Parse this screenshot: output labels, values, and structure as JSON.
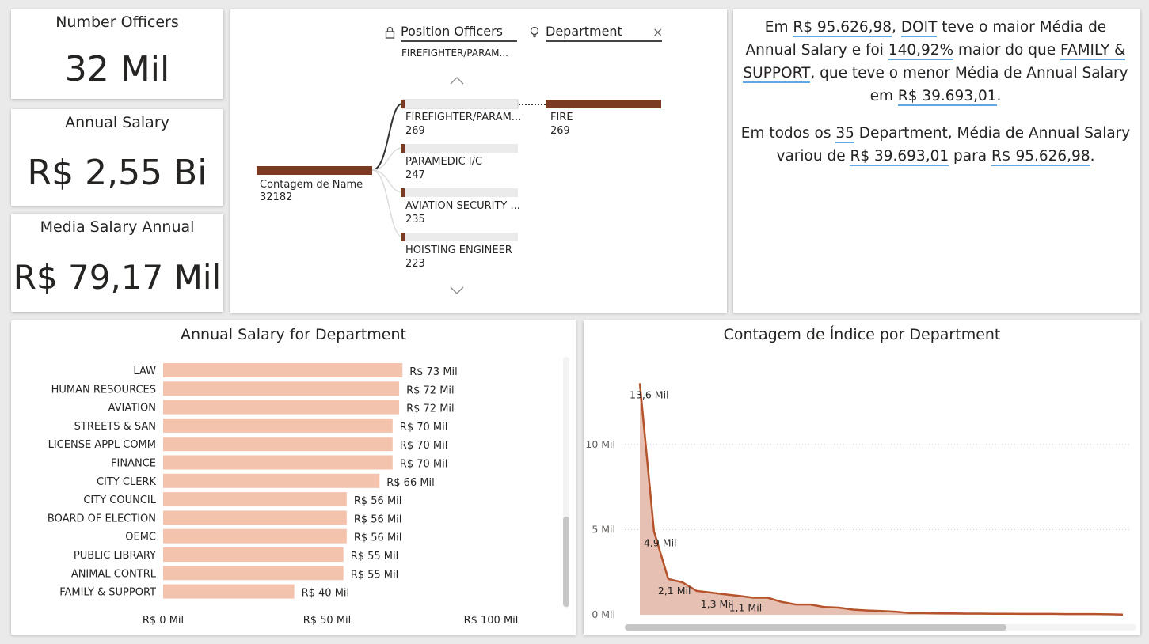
{
  "kpis": [
    {
      "label": "Number Officers",
      "value": "32 Mil"
    },
    {
      "label": "Annual Salary",
      "value": "R$ 2,55 Bi"
    },
    {
      "label": "Media Salary Annual",
      "value": "R$ 79,17 Mil"
    }
  ],
  "tree": {
    "col1_header": "Position Officers",
    "col1_sub": "FIREFIGHTER/PARAM...",
    "col2_header": "Department",
    "close_glyph": "×",
    "root": {
      "label": "Contagem de Name",
      "value": "32182"
    },
    "nodes": [
      {
        "label": "FIREFIGHTER/PARAM...",
        "value": "269"
      },
      {
        "label": "PARAMEDIC I/C",
        "value": "247"
      },
      {
        "label": "AVIATION SECURITY ...",
        "value": "235"
      },
      {
        "label": "HOISTING ENGINEER",
        "value": "223"
      }
    ],
    "leaf": {
      "label": "FIRE",
      "value": "269"
    },
    "max_value": 269,
    "colors": {
      "bar": "#7b3a22",
      "track": "#ebebeb"
    }
  },
  "narrative": {
    "p1": [
      {
        "t": "Em ",
        "u": false
      },
      {
        "t": "R$ 95.626,98",
        "u": true
      },
      {
        "t": ", ",
        "u": false
      },
      {
        "t": "DOIT",
        "u": true
      },
      {
        "t": " teve o maior Média de Annual Salary e foi ",
        "u": false
      },
      {
        "t": "140,92%",
        "u": true
      },
      {
        "t": " maior do que ",
        "u": false
      },
      {
        "t": "FAMILY & SUPPORT",
        "u": true
      },
      {
        "t": ", que teve o menor Média de Annual Salary em ",
        "u": false
      },
      {
        "t": "R$ 39.693,01",
        "u": true
      },
      {
        "t": ".",
        "u": false
      }
    ],
    "p2": [
      {
        "t": "Em todos os ",
        "u": false
      },
      {
        "t": "35",
        "u": true
      },
      {
        "t": " Department, Média de Annual Salary variou de ",
        "u": false
      },
      {
        "t": "R$ 39.693,01",
        "u": true
      },
      {
        "t": " para ",
        "u": false
      },
      {
        "t": "R$ 95.626,98",
        "u": true
      },
      {
        "t": ".",
        "u": false
      }
    ]
  },
  "chart_data": [
    {
      "type": "bar",
      "orientation": "horizontal",
      "title": "Annual Salary for Department",
      "categories": [
        "LAW",
        "HUMAN RESOURCES",
        "AVIATION",
        "STREETS & SAN",
        "LICENSE APPL COMM",
        "FINANCE",
        "CITY CLERK",
        "CITY COUNCIL",
        "BOARD OF ELECTION",
        "OEMC",
        "PUBLIC LIBRARY",
        "ANIMAL CONTRL",
        "FAMILY & SUPPORT"
      ],
      "values": [
        73,
        72,
        72,
        70,
        70,
        70,
        66,
        56,
        56,
        56,
        55,
        55,
        40
      ],
      "value_labels": [
        "R$ 73 Mil",
        "R$ 72 Mil",
        "R$ 72 Mil",
        "R$ 70 Mil",
        "R$ 70 Mil",
        "R$ 70 Mil",
        "R$ 66 Mil",
        "R$ 56 Mil",
        "R$ 56 Mil",
        "R$ 56 Mil",
        "R$ 55 Mil",
        "R$ 55 Mil",
        "R$ 40 Mil"
      ],
      "unit": "Mil",
      "x_ticks": [
        "R$ 0 Mil",
        "R$ 50 Mil",
        "R$ 100 Mil"
      ],
      "xlim": [
        0,
        100
      ],
      "grid": false,
      "color": "#f4c3ae"
    },
    {
      "type": "area",
      "title": "Contagem de Índice por Department",
      "values": [
        13.6,
        4.9,
        2.1,
        1.9,
        1.4,
        1.3,
        1.2,
        1.1,
        1.0,
        1.0,
        0.75,
        0.6,
        0.6,
        0.45,
        0.42,
        0.3,
        0.25,
        0.22,
        0.18,
        0.1,
        0.1,
        0.09,
        0.08,
        0.07,
        0.07,
        0.06,
        0.06,
        0.05,
        0.05,
        0.05,
        0.04,
        0.04,
        0.04,
        0.03,
        0.01
      ],
      "unit": "Mil",
      "data_labels": [
        {
          "index": 0,
          "text": "13,6 Mil"
        },
        {
          "index": 1,
          "text": "4,9 Mil"
        },
        {
          "index": 2,
          "text": "2,1 Mil"
        },
        {
          "index": 5,
          "text": "1,3 Mil"
        },
        {
          "index": 7,
          "text": "1,1 Mil"
        }
      ],
      "y_ticks": [
        {
          "v": 0,
          "label": "0 Mil"
        },
        {
          "v": 5,
          "label": "5 Mil"
        },
        {
          "v": 10,
          "label": "10 Mil"
        }
      ],
      "ylim": [
        0,
        14.5
      ],
      "grid": "horizontal dotted",
      "colors": {
        "line": "#b5532c",
        "fill": "#e3b9aa"
      }
    }
  ]
}
